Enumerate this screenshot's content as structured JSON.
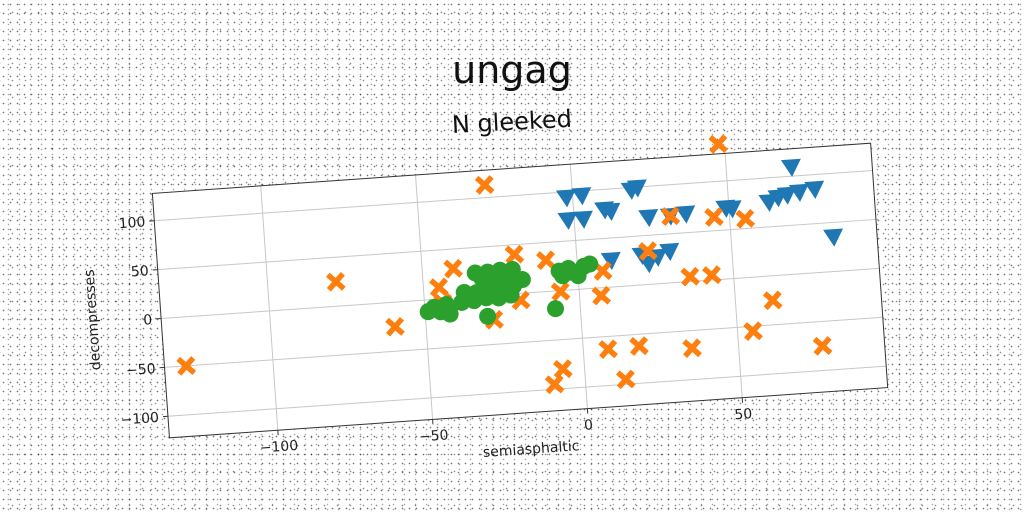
{
  "chart_data": {
    "type": "scatter",
    "suptitle": "ungag",
    "title": "N gleeked",
    "xlabel": "semiasphaltic",
    "ylabel": "decompresses",
    "xlim": [
      -135,
      97
    ],
    "ylim": [
      -122,
      128
    ],
    "x_ticks": [
      -100,
      -50,
      0,
      50
    ],
    "y_ticks": [
      -100,
      -50,
      0,
      50,
      100
    ],
    "x_tick_labels": [
      "−100",
      "−50",
      "0",
      "50"
    ],
    "y_tick_labels": [
      "−100",
      "−50",
      "0",
      "50",
      "100"
    ],
    "grid": true,
    "colors": {
      "blue": "#1f77b4",
      "orange": "#ff7f0e",
      "green": "#2ca02c"
    },
    "series": [
      {
        "marker": "triangle-down",
        "color": "#1f77b4",
        "points": [
          [
            -2,
            95
          ],
          [
            3,
            96
          ],
          [
            -2,
            72
          ],
          [
            3,
            72
          ],
          [
            10,
            80
          ],
          [
            12,
            78
          ],
          [
            19,
            98
          ],
          [
            21,
            100
          ],
          [
            24,
            69
          ],
          [
            31,
            69
          ],
          [
            36,
            70
          ],
          [
            49,
            73
          ],
          [
            51,
            72
          ],
          [
            63,
            76
          ],
          [
            66,
            80
          ],
          [
            69,
            82
          ],
          [
            73,
            84
          ],
          [
            71,
            110
          ],
          [
            78,
            86
          ],
          [
            83,
            36
          ],
          [
            11,
            28
          ],
          [
            21,
            31
          ],
          [
            26,
            28
          ],
          [
            30,
            33
          ],
          [
            23,
            22
          ]
        ]
      },
      {
        "marker": "x",
        "color": "#ff7f0e",
        "points": [
          [
            48,
            138
          ],
          [
            -28,
            113
          ],
          [
            -78,
            25
          ],
          [
            -128,
            -50
          ],
          [
            -60,
            -25
          ],
          [
            -45,
            12
          ],
          [
            -44,
            -4
          ],
          [
            -40,
            30
          ],
          [
            -28,
            -25
          ],
          [
            -20,
            40
          ],
          [
            -19,
            -7
          ],
          [
            -10,
            32
          ],
          [
            -6,
            -1
          ],
          [
            8,
            17
          ],
          [
            7,
            -8
          ],
          [
            23,
            34
          ],
          [
            31,
            68
          ],
          [
            36,
            5
          ],
          [
            43,
            5
          ],
          [
            45,
            64
          ],
          [
            55,
            60
          ],
          [
            62,
            -25
          ],
          [
            55,
            -55
          ],
          [
            77,
            -75
          ],
          [
            35,
            -68
          ],
          [
            18,
            -62
          ],
          [
            8,
            -63
          ],
          [
            -7,
            -80
          ],
          [
            -10,
            -95
          ],
          [
            13,
            -95
          ]
        ]
      },
      {
        "marker": "circle",
        "color": "#2ca02c",
        "points": [
          [
            -33,
            24
          ],
          [
            -29,
            24
          ],
          [
            -25,
            25
          ],
          [
            -21,
            25
          ],
          [
            -26,
            22
          ],
          [
            -31,
            18
          ],
          [
            -27,
            17
          ],
          [
            -23,
            14
          ],
          [
            -18,
            14
          ],
          [
            -37,
            5
          ],
          [
            -33,
            4
          ],
          [
            -29,
            7
          ],
          [
            -25,
            8
          ],
          [
            -21,
            8
          ],
          [
            -38,
            -5
          ],
          [
            -34,
            -4
          ],
          [
            -30,
            -2
          ],
          [
            -26,
            -3
          ],
          [
            -22,
            -1
          ],
          [
            -43,
            -6
          ],
          [
            -47,
            -8
          ],
          [
            -45,
            -13
          ],
          [
            -49,
            -12
          ],
          [
            -42,
            -16
          ],
          [
            -30,
            -21
          ],
          [
            -8,
            -18
          ],
          [
            -3,
            22
          ],
          [
            -6,
            20
          ],
          [
            -2,
            18
          ],
          [
            2,
            23
          ],
          [
            4,
            25
          ],
          [
            -5,
            15
          ],
          [
            0,
            14
          ]
        ]
      }
    ]
  }
}
